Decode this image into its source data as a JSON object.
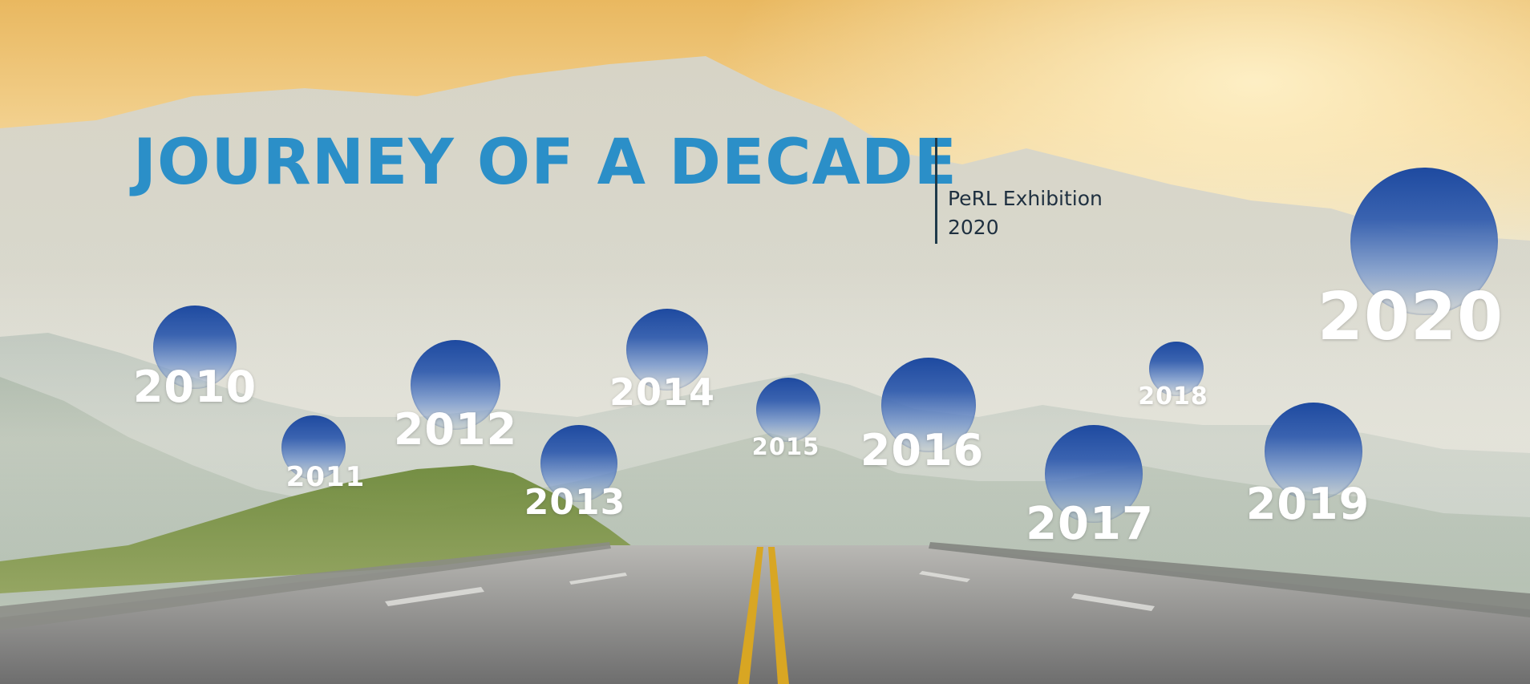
{
  "title": "JOURNEY OF A DECADE",
  "subtitle": {
    "line1": "PeRL Exhibition",
    "line2": "2020"
  },
  "colors": {
    "title": "#2b8fc8",
    "divider": "#1f3a4a",
    "subtitle": "#1f3040",
    "bubble_top": "#1e4aa0",
    "year_text": "#ffffff"
  },
  "milestones": [
    {
      "year": "2010"
    },
    {
      "year": "2011"
    },
    {
      "year": "2012"
    },
    {
      "year": "2013"
    },
    {
      "year": "2014"
    },
    {
      "year": "2015"
    },
    {
      "year": "2016"
    },
    {
      "year": "2017"
    },
    {
      "year": "2018"
    },
    {
      "year": "2019"
    },
    {
      "year": "2020"
    }
  ]
}
